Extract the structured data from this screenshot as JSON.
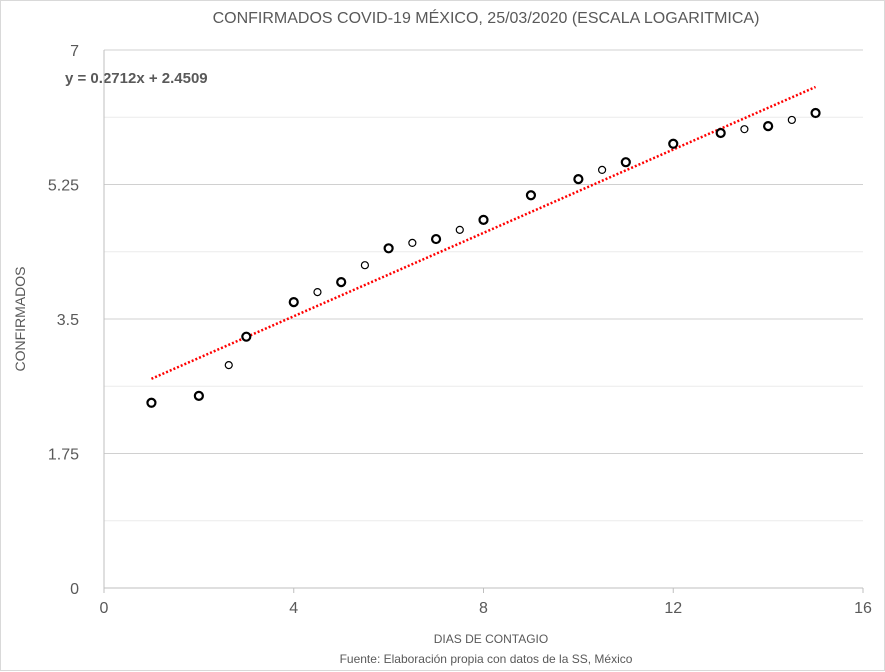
{
  "chart_data": {
    "type": "scatter",
    "title": "CONFIRMADOS COVID-19 MÉXICO, 25/03/2020 (ESCALA LOGARITMICA)",
    "xlabel": "DIAS DE CONTAGIO",
    "ylabel": "CONFIRMADOS",
    "source": "Fuente: Elaboración propia con datos de la SS, México",
    "xlim": [
      0,
      16
    ],
    "ylim": [
      0,
      7
    ],
    "xticks": [
      "0",
      "4",
      "8",
      "12",
      "16"
    ],
    "yticks": [
      "0",
      "1.75",
      "3.5",
      "5.25",
      "7"
    ],
    "grid": true,
    "series": [
      {
        "marker": "bold-circle",
        "x": [
          1,
          2,
          3,
          4,
          5,
          6,
          7,
          8,
          9,
          10,
          11,
          12,
          13,
          14,
          15
        ],
        "y": [
          2.41,
          2.5,
          3.27,
          3.72,
          3.98,
          4.42,
          4.54,
          4.79,
          5.11,
          5.32,
          5.54,
          5.78,
          5.92,
          6.01,
          6.18
        ]
      },
      {
        "marker": "thin-circle",
        "x": [
          2.63,
          4.5,
          5.5,
          6.5,
          7.5,
          10.5,
          13.5,
          14.5
        ],
        "y": [
          2.9,
          3.85,
          4.2,
          4.49,
          4.66,
          5.44,
          5.97,
          6.09
        ]
      }
    ],
    "trendline": {
      "type": "linear",
      "slope": 0.2712,
      "intercept": 2.4509,
      "x_range": [
        1,
        15
      ],
      "color": "#ff0000",
      "label": "y = 0.2712x + 2.4509"
    }
  }
}
